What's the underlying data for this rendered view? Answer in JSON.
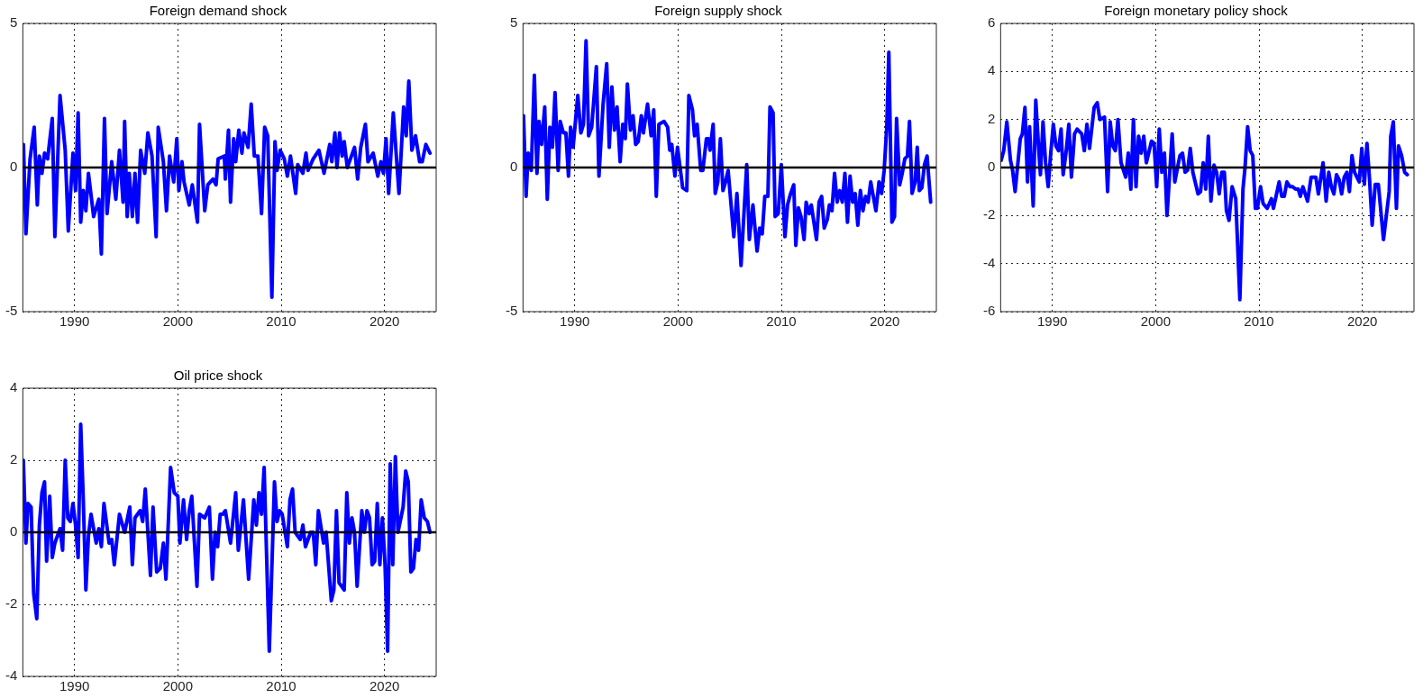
{
  "chart_data": [
    {
      "type": "line",
      "title": "Foreign demand shock",
      "color": "#0000ff",
      "line_style": "solid",
      "grid": true,
      "xlim": [
        1985,
        2025
      ],
      "xticks": [
        1990,
        2000,
        2010,
        2020
      ],
      "ylim": [
        -5,
        5
      ],
      "yticks": [
        -5,
        0,
        5
      ],
      "ref_lines": [
        {
          "axis": "y",
          "value": 0,
          "color": "#000000"
        }
      ],
      "x": [
        1985.06,
        1985.3,
        1985.7,
        1986.1,
        1986.4,
        1986.6,
        1986.85,
        1987.1,
        1987.4,
        1987.85,
        1988.1,
        1988.6,
        1989.1,
        1989.4,
        1989.85,
        1990.1,
        1990.35,
        1990.6,
        1990.85,
        1991.1,
        1991.35,
        1991.85,
        1992.35,
        1992.6,
        1992.9,
        1993.15,
        1993.6,
        1994.0,
        1994.35,
        1994.7,
        1994.85,
        1995.1,
        1995.3,
        1995.6,
        1995.85,
        1996.1,
        1996.4,
        1996.8,
        1997.1,
        1997.5,
        1997.9,
        1998.1,
        1998.6,
        1998.9,
        1999.2,
        1999.6,
        1999.9,
        2000.1,
        2000.4,
        2000.6,
        2001.1,
        2001.4,
        2001.9,
        2002.1,
        2002.6,
        2002.9,
        2003.4,
        2003.7,
        2003.9,
        2004.5,
        2004.6,
        2004.9,
        2005.1,
        2005.4,
        2005.6,
        2005.9,
        2006.2,
        2006.4,
        2006.8,
        2007.1,
        2007.4,
        2007.75,
        2008.1,
        2008.4,
        2008.7,
        2009.1,
        2009.4,
        2009.6,
        2009.9,
        2010.3,
        2010.6,
        2010.9,
        2011.4,
        2011.6,
        2012.1,
        2012.4,
        2012.6,
        2013.1,
        2013.65,
        2014.15,
        2014.7,
        2014.9,
        2015.2,
        2015.4,
        2015.65,
        2015.9,
        2016.1,
        2016.4,
        2017.1,
        2017.4,
        2017.7,
        2018.15,
        2018.4,
        2018.9,
        2019.35,
        2019.65,
        2019.9,
        2020.15,
        2020.4,
        2020.85,
        2021.4,
        2021.85,
        2022.1,
        2022.35,
        2022.65,
        2023.0,
        2023.4,
        2023.65,
        2024.0,
        2024.4
      ],
      "values": [
        0.8,
        -2.3,
        0.3,
        1.4,
        -1.3,
        0.4,
        -0.2,
        0.5,
        0.3,
        1.7,
        -2.4,
        2.5,
        0.6,
        -2.2,
        0.5,
        -0.8,
        1.9,
        -1.9,
        -0.8,
        -1.5,
        -0.2,
        -1.7,
        -1.1,
        -3.0,
        1.7,
        -1.6,
        0.2,
        -1.1,
        0.6,
        -1.2,
        1.6,
        -1.7,
        -0.2,
        -1.7,
        -0.2,
        -1.9,
        0.6,
        -0.2,
        1.2,
        0.4,
        -2.4,
        1.4,
        0.2,
        -1.5,
        0.4,
        -0.5,
        1.0,
        -0.8,
        0.2,
        -0.5,
        -1.3,
        -0.6,
        -1.9,
        1.5,
        -1.5,
        -0.6,
        -0.4,
        -0.6,
        0.3,
        0.4,
        -0.4,
        1.3,
        -1.2,
        1.0,
        0.2,
        1.3,
        0.5,
        1.2,
        0.7,
        2.2,
        0.4,
        0.4,
        -1.6,
        1.4,
        1.1,
        -4.5,
        0.9,
        -0.1,
        0.6,
        0.3,
        -0.3,
        0.4,
        -0.9,
        0.1,
        -0.2,
        0.5,
        -0.1,
        0.3,
        0.6,
        -0.2,
        0.8,
        0.2,
        1.2,
        0.0,
        1.2,
        0.4,
        0.9,
        0.0,
        0.7,
        -0.4,
        0.7,
        1.5,
        0.2,
        0.5,
        -0.3,
        0.2,
        -0.2,
        1.0,
        -0.9,
        1.9,
        -0.9,
        2.1,
        1.1,
        3.0,
        0.6,
        1.1,
        0.2,
        0.2,
        0.8,
        0.5
      ]
    },
    {
      "type": "line",
      "title": "Foreign supply shock",
      "color": "#0000ff",
      "line_style": "solid",
      "grid": true,
      "xlim": [
        1985,
        2025
      ],
      "xticks": [
        1990,
        2000,
        2010,
        2020
      ],
      "ylim": [
        -5,
        5
      ],
      "yticks": [
        -5,
        0,
        5
      ],
      "ref_lines": [
        {
          "axis": "y",
          "value": 0,
          "color": "#000000"
        }
      ],
      "x": [
        1985.05,
        1985.3,
        1985.5,
        1985.8,
        1986.1,
        1986.35,
        1986.55,
        1986.8,
        1987.1,
        1987.35,
        1987.6,
        1987.85,
        1988.1,
        1988.4,
        1988.6,
        1988.9,
        1989.15,
        1989.4,
        1989.6,
        1989.85,
        1990.3,
        1990.6,
        1990.85,
        1991.1,
        1991.35,
        1991.65,
        1992.1,
        1992.35,
        1992.75,
        1993.1,
        1993.35,
        1993.6,
        1993.85,
        1994.1,
        1994.4,
        1994.65,
        1994.9,
        1995.1,
        1995.4,
        1995.65,
        1995.9,
        1996.15,
        1996.45,
        1996.65,
        1997.05,
        1997.4,
        1997.65,
        1997.9,
        1998.15,
        1998.65,
        1999.0,
        1999.2,
        1999.4,
        1999.7,
        1999.95,
        2000.2,
        2000.45,
        2000.85,
        2001.05,
        2001.4,
        2001.6,
        2001.85,
        2002.2,
        2002.4,
        2002.75,
        2002.95,
        2003.1,
        2003.4,
        2003.6,
        2003.85,
        2004.1,
        2004.35,
        2004.6,
        2004.85,
        2005.4,
        2005.7,
        2006.1,
        2006.65,
        2006.9,
        2007.25,
        2007.65,
        2007.9,
        2008.15,
        2008.4,
        2008.7,
        2008.9,
        2009.2,
        2009.4,
        2009.7,
        2010.0,
        2010.35,
        2010.6,
        2010.9,
        2011.2,
        2011.4,
        2011.65,
        2011.9,
        2012.2,
        2012.4,
        2012.7,
        2012.9,
        2013.15,
        2013.4,
        2013.65,
        2013.9,
        2014.15,
        2014.45,
        2014.65,
        2014.9,
        2015.15,
        2015.4,
        2015.65,
        2015.9,
        2016.15,
        2016.4,
        2016.65,
        2016.9,
        2017.15,
        2017.4,
        2017.65,
        2017.9,
        2018.15,
        2018.4,
        2018.65,
        2018.9,
        2019.15,
        2019.45,
        2019.7,
        2019.95,
        2020.2,
        2020.4,
        2020.7,
        2020.95,
        2021.15,
        2021.45,
        2021.7,
        2021.95,
        2022.2,
        2022.4,
        2022.65,
        2022.95,
        2023.15,
        2023.35,
        2023.6,
        2023.85,
        2024.1,
        2024.45
      ],
      "values": [
        1.8,
        -1.0,
        0.5,
        -0.1,
        3.2,
        -0.2,
        1.6,
        0.8,
        2.1,
        -1.1,
        1.4,
        0.7,
        2.6,
        -0.1,
        1.6,
        1.2,
        1.2,
        -0.3,
        1.4,
        0.7,
        2.5,
        1.2,
        1.5,
        4.4,
        1.1,
        1.4,
        3.5,
        -0.3,
        2.2,
        3.6,
        0.7,
        2.8,
        1.3,
        2.1,
        0.2,
        1.5,
        1.0,
        2.9,
        1.3,
        1.8,
        0.8,
        0.9,
        1.8,
        1.2,
        2.2,
        1.1,
        2.0,
        -1.0,
        1.5,
        1.6,
        1.4,
        0.6,
        0.8,
        -0.3,
        0.7,
        0.0,
        -0.7,
        -0.8,
        2.5,
        2.0,
        1.1,
        1.5,
        -0.1,
        -0.1,
        1.0,
        1.0,
        0.6,
        1.5,
        -0.9,
        -0.5,
        1.0,
        -0.8,
        -0.5,
        -0.1,
        -2.4,
        -0.9,
        -3.4,
        0.1,
        -2.5,
        -1.3,
        -2.9,
        -2.1,
        -2.3,
        -1.0,
        -1.0,
        2.1,
        1.9,
        -1.7,
        -1.6,
        0.1,
        -2.4,
        -1.3,
        -0.9,
        -0.6,
        -2.7,
        -1.4,
        -1.7,
        -2.5,
        -1.2,
        -1.6,
        -1.3,
        -1.9,
        -2.5,
        -1.2,
        -1.0,
        -2.1,
        -1.8,
        -1.3,
        -1.5,
        -0.2,
        -1.2,
        -0.8,
        -1.2,
        -0.2,
        -1.9,
        -0.3,
        -1.2,
        -0.9,
        -2.0,
        -0.8,
        -1.5,
        -1.0,
        -1.2,
        -0.5,
        -1.0,
        -1.5,
        -0.5,
        -0.9,
        -0.1,
        1.4,
        4.0,
        -1.9,
        -1.7,
        1.7,
        -0.6,
        -0.2,
        0.3,
        0.4,
        1.6,
        -0.9,
        -0.5,
        0.7,
        -0.8,
        -0.7,
        0.1,
        0.4,
        -1.2
      ]
    },
    {
      "type": "line",
      "title": "Foreign monetary policy shock",
      "color": "#0000ff",
      "line_style": "solid",
      "grid": true,
      "xlim": [
        1985,
        2025
      ],
      "xticks": [
        1990,
        2000,
        2010,
        2020
      ],
      "ylim": [
        -6,
        6
      ],
      "yticks": [
        -6,
        -4,
        -2,
        0,
        2,
        4,
        6
      ],
      "ref_lines": [
        {
          "axis": "y",
          "value": 0,
          "color": "#000000"
        }
      ],
      "x": [
        1985.05,
        1985.3,
        1985.6,
        1985.95,
        1986.15,
        1986.4,
        1986.9,
        1987.1,
        1987.35,
        1987.6,
        1987.8,
        1988.15,
        1988.4,
        1988.65,
        1988.85,
        1989.1,
        1989.35,
        1989.6,
        1989.85,
        1990.1,
        1990.35,
        1990.6,
        1990.85,
        1991.05,
        1991.35,
        1991.6,
        1991.85,
        1992.15,
        1992.4,
        1992.85,
        1993.1,
        1993.35,
        1993.6,
        1994.05,
        1994.35,
        1994.6,
        1995.05,
        1995.35,
        1995.6,
        1995.85,
        1996.1,
        1996.35,
        1996.65,
        1997.1,
        1997.35,
        1997.6,
        1997.85,
        1998.1,
        1998.35,
        1998.6,
        1998.85,
        1999.1,
        1999.6,
        1999.85,
        2000.1,
        2000.35,
        2000.6,
        2000.85,
        2001.1,
        2001.6,
        2001.85,
        2002.35,
        2002.6,
        2002.85,
        2003.1,
        2003.35,
        2003.6,
        2004.1,
        2004.35,
        2004.6,
        2004.85,
        2005.1,
        2005.35,
        2005.65,
        2005.9,
        2006.15,
        2006.4,
        2006.65,
        2006.85,
        2007.1,
        2007.4,
        2007.75,
        2008.15,
        2008.45,
        2008.65,
        2008.9,
        2009.15,
        2009.4,
        2009.65,
        2009.85,
        2010.15,
        2010.4,
        2010.8,
        2011.2,
        2011.4,
        2011.95,
        2012.2,
        2012.45,
        2012.7,
        2013.0,
        2013.25,
        2013.55,
        2013.8,
        2014.0,
        2014.25,
        2014.7,
        2015.05,
        2015.5,
        2015.75,
        2016.2,
        2016.5,
        2016.75,
        2017.0,
        2017.25,
        2017.5,
        2017.75,
        2018.0,
        2018.25,
        2018.5,
        2018.75,
        2019.0,
        2019.25,
        2019.7,
        2019.95,
        2020.2,
        2020.45,
        2020.7,
        2020.95,
        2021.25,
        2021.55,
        2022.05,
        2022.6,
        2022.75,
        2023.0,
        2023.3,
        2023.5,
        2023.8,
        2024.1,
        2024.35
      ],
      "values": [
        0.3,
        0.7,
        1.9,
        0.3,
        -0.1,
        -1.0,
        1.2,
        1.4,
        2.5,
        -0.6,
        1.7,
        -1.6,
        2.8,
        1.0,
        -0.3,
        1.9,
        0.2,
        -0.8,
        0.6,
        1.8,
        0.9,
        0.7,
        1.6,
        -0.3,
        0.7,
        1.8,
        -0.4,
        1.4,
        1.6,
        1.4,
        0.7,
        1.8,
        0.8,
        2.5,
        2.7,
        2.0,
        2.1,
        -1.0,
        1.9,
        0.9,
        0.7,
        2.0,
        0.2,
        -0.4,
        0.6,
        -0.9,
        2.0,
        -0.8,
        1.3,
        0.6,
        1.3,
        0.2,
        1.1,
        1.0,
        -0.8,
        1.6,
        -0.2,
        0.6,
        -2.0,
        1.4,
        -0.6,
        0.5,
        0.6,
        -0.2,
        -0.1,
        0.8,
        -0.2,
        -1.1,
        -1.0,
        0.2,
        -0.9,
        1.3,
        -1.4,
        0.1,
        -0.2,
        -1.1,
        -0.2,
        -0.2,
        -1.8,
        -2.2,
        -0.8,
        -1.3,
        -5.5,
        -0.9,
        0.0,
        1.7,
        0.7,
        0.5,
        -1.7,
        -1.7,
        -0.8,
        -1.5,
        -1.7,
        -1.3,
        -1.7,
        -0.6,
        -1.2,
        -1.2,
        -0.6,
        -0.8,
        -0.8,
        -0.9,
        -0.9,
        -1.2,
        -0.8,
        -1.4,
        -0.4,
        -0.4,
        -1.1,
        0.2,
        -1.4,
        -0.2,
        -0.8,
        -1.1,
        -0.3,
        -0.5,
        -1.1,
        -0.4,
        -0.2,
        -1.0,
        0.5,
        -0.2,
        -0.6,
        0.8,
        -0.7,
        1.0,
        -0.5,
        -2.4,
        -0.7,
        -0.7,
        -3.0,
        -1.0,
        1.3,
        1.9,
        -1.7,
        0.9,
        0.5,
        -0.2,
        -0.3
      ]
    },
    {
      "type": "line",
      "title": "Oil price shock",
      "color": "#0000ff",
      "line_style": "solid",
      "grid": true,
      "xlim": [
        1985,
        2025
      ],
      "xticks": [
        1990,
        2000,
        2010,
        2020
      ],
      "ylim": [
        -4,
        4
      ],
      "yticks": [
        -4,
        -2,
        0,
        2,
        4
      ],
      "ref_lines": [
        {
          "axis": "y",
          "value": 0,
          "color": "#000000"
        }
      ],
      "x": [
        1985.05,
        1985.3,
        1985.5,
        1985.8,
        1986.05,
        1986.35,
        1986.6,
        1986.85,
        1987.1,
        1987.3,
        1987.6,
        1987.85,
        1988.1,
        1988.6,
        1988.85,
        1989.1,
        1989.35,
        1989.6,
        1989.85,
        1990.1,
        1990.35,
        1990.6,
        1990.85,
        1991.1,
        1991.35,
        1991.6,
        1992.1,
        1992.35,
        1992.6,
        1992.85,
        1993.35,
        1993.6,
        1993.85,
        1994.35,
        1994.85,
        1995.35,
        1995.6,
        1995.85,
        1996.35,
        1996.6,
        1996.85,
        1997.35,
        1997.6,
        1997.95,
        1998.3,
        1998.6,
        1998.85,
        1999.3,
        1999.65,
        2000.0,
        2000.2,
        2000.55,
        2000.85,
        2001.1,
        2001.35,
        2001.85,
        2002.1,
        2002.6,
        2003.05,
        2003.35,
        2003.6,
        2003.85,
        2004.1,
        2004.35,
        2004.6,
        2005.1,
        2005.6,
        2005.85,
        2006.35,
        2006.85,
        2007.35,
        2007.6,
        2007.85,
        2008.1,
        2008.35,
        2008.85,
        2009.35,
        2009.6,
        2009.85,
        2010.1,
        2010.6,
        2010.85,
        2011.1,
        2011.35,
        2011.85,
        2012.1,
        2012.35,
        2012.85,
        2013.1,
        2013.35,
        2013.6,
        2014.1,
        2014.35,
        2014.85,
        2015.1,
        2015.35,
        2015.6,
        2016.1,
        2016.35,
        2016.6,
        2016.85,
        2017.1,
        2017.35,
        2017.8,
        2018.05,
        2018.3,
        2018.55,
        2018.8,
        2019.05,
        2019.3,
        2019.55,
        2019.8,
        2020.05,
        2020.3,
        2020.55,
        2020.8,
        2021.05,
        2021.3,
        2021.8,
        2022.05,
        2022.3,
        2022.55,
        2022.8,
        2023.05,
        2023.3,
        2023.55,
        2023.85,
        2024.15,
        2024.4
      ],
      "values": [
        2.0,
        -0.3,
        0.8,
        0.7,
        -1.7,
        -2.4,
        0.2,
        1.1,
        1.4,
        -0.8,
        1.0,
        -0.7,
        -0.3,
        0.1,
        -0.5,
        2.0,
        0.4,
        0.3,
        0.8,
        0.2,
        -0.7,
        3.0,
        0.9,
        -1.6,
        -0.1,
        0.5,
        -0.3,
        0.1,
        -0.4,
        0.8,
        -0.3,
        -0.2,
        -0.9,
        0.5,
        0.0,
        0.7,
        -0.9,
        0.4,
        0.6,
        0.3,
        1.2,
        -1.2,
        0.7,
        -1.1,
        -1.0,
        -0.3,
        -1.3,
        1.8,
        1.1,
        1.0,
        -0.3,
        0.9,
        -0.2,
        0.6,
        1.0,
        -1.5,
        0.5,
        0.4,
        0.7,
        -1.3,
        0.0,
        -0.4,
        0.5,
        0.5,
        0.6,
        -0.3,
        1.1,
        -0.5,
        0.9,
        -1.3,
        0.9,
        0.2,
        1.1,
        0.5,
        1.8,
        -3.3,
        1.4,
        0.3,
        0.6,
        0.5,
        -0.4,
        0.9,
        1.2,
        0.0,
        -0.2,
        0.2,
        -0.4,
        0.0,
        0.0,
        -0.9,
        0.6,
        -0.3,
        0.0,
        -1.9,
        -1.6,
        0.6,
        -1.4,
        -1.6,
        1.1,
        -0.3,
        0.4,
        0.0,
        -1.5,
        0.6,
        0.0,
        0.6,
        0.4,
        -0.9,
        -0.8,
        0.8,
        -0.9,
        0.4,
        -0.9,
        -3.3,
        1.9,
        -0.9,
        2.1,
        0.0,
        0.7,
        1.7,
        1.4,
        -1.1,
        -1.0,
        -0.2,
        -0.5,
        0.9,
        0.4,
        0.3,
        0.0
      ]
    }
  ]
}
